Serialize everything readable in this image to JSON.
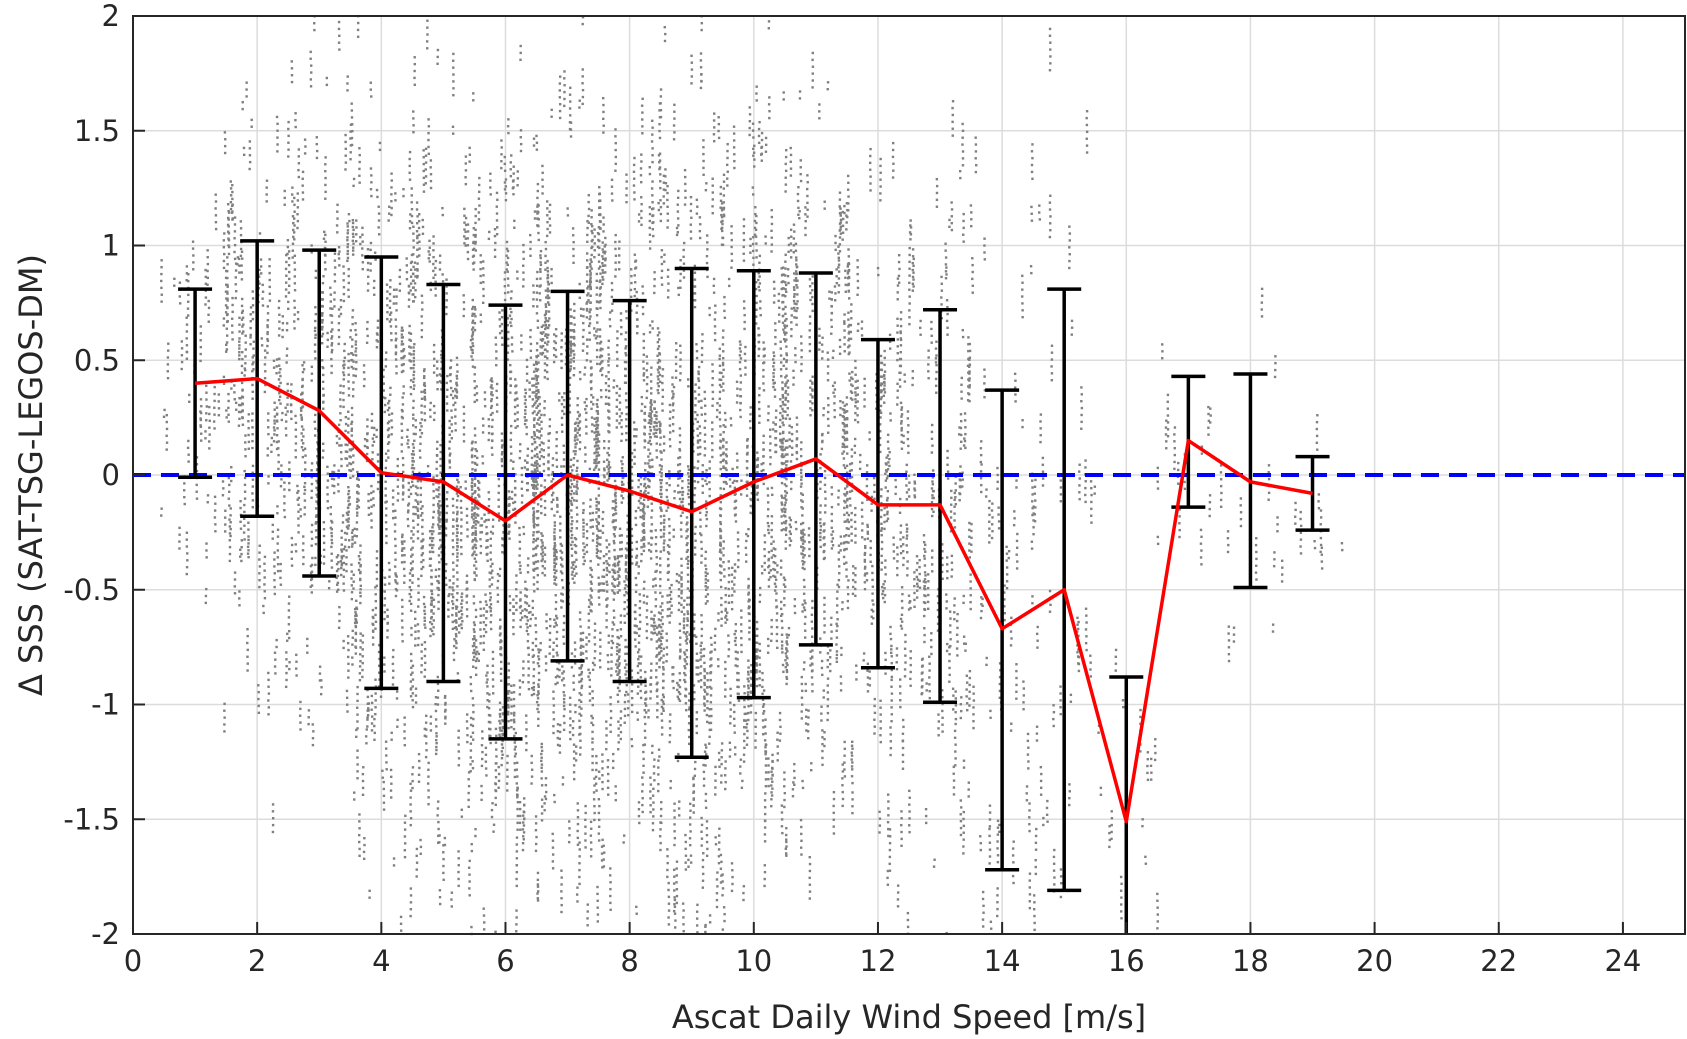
{
  "chart_data": {
    "type": "scatter",
    "title": "",
    "xlabel": "Ascat Daily Wind Speed [m/s]",
    "ylabel": "Δ SSS (SAT-TSG-LEGOS-DM)",
    "xlim": [
      0,
      25
    ],
    "ylim": [
      -2,
      2
    ],
    "xticks": [
      0,
      2,
      4,
      6,
      8,
      10,
      12,
      14,
      16,
      18,
      20,
      22,
      24
    ],
    "yticks": [
      -2,
      -1.5,
      -1,
      -0.5,
      0,
      0.5,
      1,
      1.5,
      2
    ],
    "ytick_labels": [
      "-2",
      "-1.5",
      "-1",
      "-0.5",
      "0",
      "0.5",
      "1",
      "1.5",
      "2"
    ],
    "grid": true,
    "reference_line": {
      "y": 0,
      "style": "dashed",
      "color": "#0000ff"
    },
    "binned_mean": {
      "color": "#ff0000",
      "x": [
        1,
        2,
        3,
        4,
        5,
        6,
        7,
        8,
        9,
        10,
        11,
        12,
        13,
        14,
        15,
        16,
        17,
        18,
        19
      ],
      "mean": [
        0.4,
        0.42,
        0.28,
        0.01,
        -0.03,
        -0.2,
        0.0,
        -0.07,
        -0.16,
        -0.03,
        0.07,
        -0.13,
        -0.13,
        -0.67,
        -0.5,
        -1.51,
        0.15,
        -0.03,
        -0.08
      ],
      "lower": [
        -0.01,
        -0.18,
        -0.44,
        -0.93,
        -0.9,
        -1.15,
        -0.81,
        -0.9,
        -1.23,
        -0.97,
        -0.74,
        -0.84,
        -0.99,
        -1.72,
        -1.81,
        -2.0,
        -0.14,
        -0.49,
        -0.24
      ],
      "upper": [
        0.81,
        1.02,
        0.98,
        0.95,
        0.83,
        0.74,
        0.8,
        0.76,
        0.9,
        0.89,
        0.88,
        0.59,
        0.72,
        0.37,
        0.81,
        -0.88,
        0.43,
        0.44,
        0.08
      ]
    },
    "scatter_cloud": {
      "color": "#808080",
      "note_visible": false,
      "x_range": [
        0.8,
        19.4
      ],
      "y_range": [
        -2,
        2
      ]
    }
  }
}
